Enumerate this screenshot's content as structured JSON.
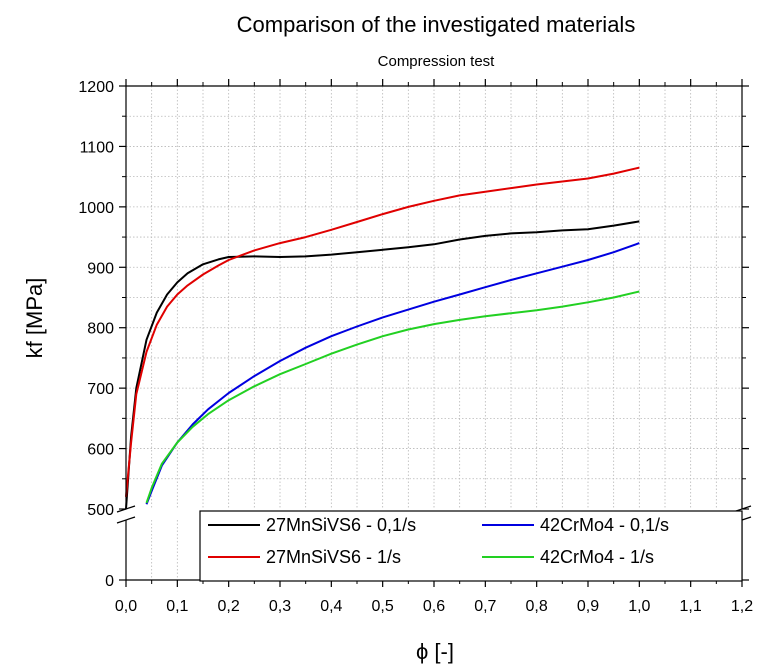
{
  "chart_data": {
    "type": "line",
    "title": "Comparison of the investigated materials",
    "subtitle": "Compression test",
    "xlabel": "ϕ [-]",
    "ylabel": "kf [MPa]",
    "xlim": [
      0,
      1.2
    ],
    "ylim_lower": [
      0,
      100
    ],
    "ylim_upper": [
      500,
      1200
    ],
    "axis_break": true,
    "x_ticks": [
      "0,0",
      "0,1",
      "0,2",
      "0,3",
      "0,4",
      "0,5",
      "0,6",
      "0,7",
      "0,8",
      "0,9",
      "1,0",
      "1,1",
      "1,2"
    ],
    "y_ticks_upper": [
      "500",
      "600",
      "700",
      "800",
      "900",
      "1000",
      "1100",
      "1200"
    ],
    "y_ticks_lower": [
      "0"
    ],
    "grid": true,
    "legend_position": "bottom-right",
    "series": [
      {
        "name": "27MnSiVS6 - 0,1/s",
        "color": "#000000",
        "x": [
          0.0,
          0.01,
          0.02,
          0.04,
          0.06,
          0.08,
          0.1,
          0.12,
          0.15,
          0.18,
          0.2,
          0.25,
          0.3,
          0.35,
          0.4,
          0.45,
          0.5,
          0.55,
          0.6,
          0.65,
          0.7,
          0.75,
          0.8,
          0.85,
          0.9,
          0.95,
          1.0
        ],
        "y": [
          500,
          620,
          700,
          780,
          825,
          855,
          875,
          890,
          905,
          913,
          917,
          918,
          917,
          918,
          921,
          925,
          929,
          933,
          938,
          946,
          952,
          956,
          958,
          961,
          963,
          969,
          976
        ]
      },
      {
        "name": "27MnSiVS6 - 1/s",
        "color": "#e00000",
        "x": [
          0.0,
          0.01,
          0.02,
          0.04,
          0.06,
          0.08,
          0.1,
          0.12,
          0.15,
          0.18,
          0.2,
          0.25,
          0.3,
          0.35,
          0.4,
          0.45,
          0.5,
          0.55,
          0.6,
          0.65,
          0.7,
          0.75,
          0.8,
          0.85,
          0.9,
          0.95,
          1.0
        ],
        "y": [
          520,
          610,
          690,
          760,
          805,
          835,
          855,
          870,
          888,
          903,
          912,
          928,
          940,
          950,
          962,
          975,
          988,
          1000,
          1010,
          1019,
          1025,
          1031,
          1037,
          1042,
          1047,
          1055,
          1065
        ]
      },
      {
        "name": "42CrMo4 - 0,1/s",
        "color": "#0000e0",
        "x": [
          0.04,
          0.05,
          0.07,
          0.1,
          0.13,
          0.16,
          0.2,
          0.25,
          0.3,
          0.35,
          0.4,
          0.45,
          0.5,
          0.55,
          0.6,
          0.65,
          0.7,
          0.75,
          0.8,
          0.85,
          0.9,
          0.95,
          1.0
        ],
        "y": [
          508,
          530,
          572,
          610,
          640,
          665,
          692,
          720,
          745,
          767,
          786,
          802,
          817,
          830,
          843,
          855,
          867,
          879,
          890,
          901,
          912,
          925,
          940
        ]
      },
      {
        "name": "42CrMo4 - 1/s",
        "color": "#22d022",
        "x": [
          0.04,
          0.05,
          0.07,
          0.1,
          0.13,
          0.16,
          0.2,
          0.25,
          0.3,
          0.35,
          0.4,
          0.45,
          0.5,
          0.55,
          0.6,
          0.65,
          0.7,
          0.75,
          0.8,
          0.85,
          0.9,
          0.95,
          1.0
        ],
        "y": [
          510,
          535,
          575,
          610,
          636,
          657,
          680,
          703,
          723,
          740,
          757,
          772,
          786,
          797,
          806,
          813,
          819,
          824,
          829,
          835,
          842,
          850,
          860
        ]
      }
    ]
  }
}
